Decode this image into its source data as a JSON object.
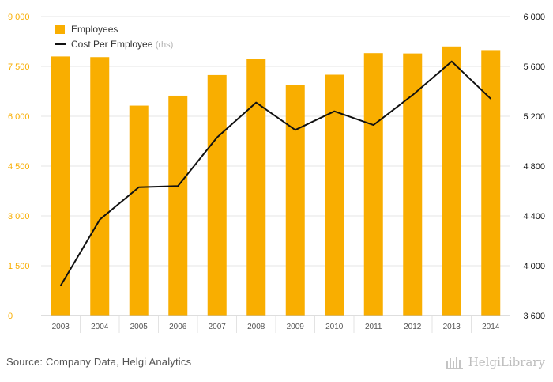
{
  "chart_data": {
    "type": "bar",
    "categories": [
      "2003",
      "2004",
      "2005",
      "2006",
      "2007",
      "2008",
      "2009",
      "2010",
      "2011",
      "2012",
      "2013",
      "2014"
    ],
    "series": [
      {
        "name": "Employees",
        "kind": "bar",
        "axis": "left",
        "color": "#F9AE00",
        "values": [
          7800,
          7780,
          6320,
          6620,
          7240,
          7730,
          6950,
          7250,
          7900,
          7890,
          8100,
          7990
        ]
      },
      {
        "name": "Cost Per Employee",
        "kind": "line",
        "axis": "right",
        "color": "#111111",
        "values": [
          3840,
          4370,
          4630,
          4640,
          5030,
          5310,
          5090,
          5240,
          5130,
          5370,
          5640,
          5340
        ]
      }
    ],
    "legend_suffix": "(rhs)",
    "left_axis": {
      "min": 0,
      "max": 9000,
      "ticks": [
        0,
        1500,
        3000,
        4500,
        6000,
        7500,
        9000
      ],
      "tick_labels": [
        "0",
        "1 500",
        "3 000",
        "4 500",
        "6 000",
        "7 500",
        "9 000"
      ],
      "color": "#F9AE00"
    },
    "right_axis": {
      "min": 3600,
      "max": 6000,
      "ticks": [
        3600,
        4000,
        4400,
        4800,
        5200,
        5600,
        6000
      ],
      "tick_labels": [
        "3 600",
        "4 000",
        "4 400",
        "4 800",
        "5 200",
        "5 600",
        "6 000"
      ],
      "color": "#111111"
    },
    "grid": true,
    "legend_position": "top-left"
  },
  "footer": {
    "source": "Source: Company Data, Helgi Analytics",
    "brand": "HelgiLibrary"
  }
}
